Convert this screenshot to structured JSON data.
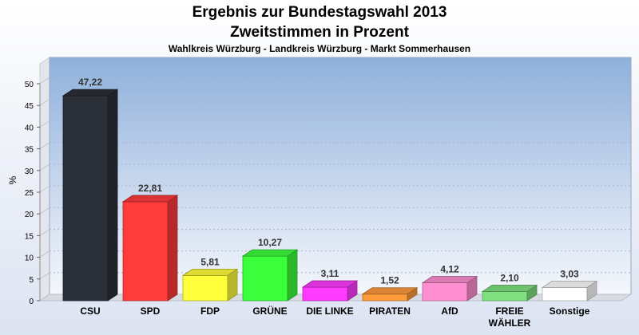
{
  "chart_data": {
    "type": "bar",
    "title": "Ergebnis zur Bundestagswahl 2013",
    "title_line2": "Zweitstimmen in Prozent",
    "subtitle": "Wahlkreis Würzburg - Landkreis Würzburg - Markt Sommerhausen",
    "ylabel": "%",
    "ylim": [
      0,
      50
    ],
    "yticks": [
      0,
      5,
      10,
      15,
      20,
      25,
      30,
      35,
      40,
      45,
      50
    ],
    "grid": true,
    "categories": [
      "CSU",
      "SPD",
      "FDP",
      "GRÜNE",
      "DIE LINKE",
      "PIRATEN",
      "AfD",
      "FREIE WÄHLER",
      "Sonstige"
    ],
    "category_lines": [
      [
        "CSU"
      ],
      [
        "SPD"
      ],
      [
        "FDP"
      ],
      [
        "GRÜNE"
      ],
      [
        "DIE LINKE"
      ],
      [
        "PIRATEN"
      ],
      [
        "AfD"
      ],
      [
        "FREIE",
        "WÄHLER"
      ],
      [
        "Sonstige"
      ]
    ],
    "values": [
      47.22,
      22.81,
      5.81,
      10.27,
      3.11,
      1.52,
      4.12,
      2.1,
      3.03
    ],
    "value_labels": [
      "47,22",
      "22,81",
      "5,81",
      "10,27",
      "3,11",
      "1,52",
      "4,12",
      "2,10",
      "3,03"
    ],
    "colors": [
      "#2b2f38",
      "#ff3b3b",
      "#ffff3b",
      "#3bff3b",
      "#ff3bff",
      "#ff9a3b",
      "#ff8fd0",
      "#80e080",
      "#ffffff"
    ]
  }
}
